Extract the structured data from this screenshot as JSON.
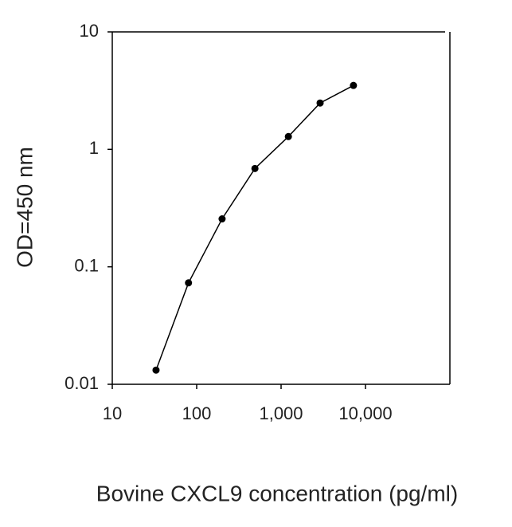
{
  "chart_data": {
    "type": "line",
    "log_x": true,
    "log_y": true,
    "x_label": "Bovine CXCL9 concentration (pg/ml)",
    "y_label": "OD=450 nm",
    "x": [
      33,
      80,
      200,
      490,
      1220,
      2900,
      7200
    ],
    "series": [
      {
        "color": "#000000",
        "values": [
          0.0132,
          0.073,
          0.256,
          0.687,
          1.285,
          2.48,
          3.5
        ]
      }
    ],
    "xlim": [
      10,
      100000
    ],
    "xticks": [
      10,
      100,
      {
        "value": 1000,
        "label": "1,000"
      },
      {
        "value": 10000,
        "label": "10,000"
      }
    ],
    "ylim": [
      0.01,
      10
    ],
    "yticks": [
      0.01,
      0.1,
      1,
      10
    ]
  }
}
